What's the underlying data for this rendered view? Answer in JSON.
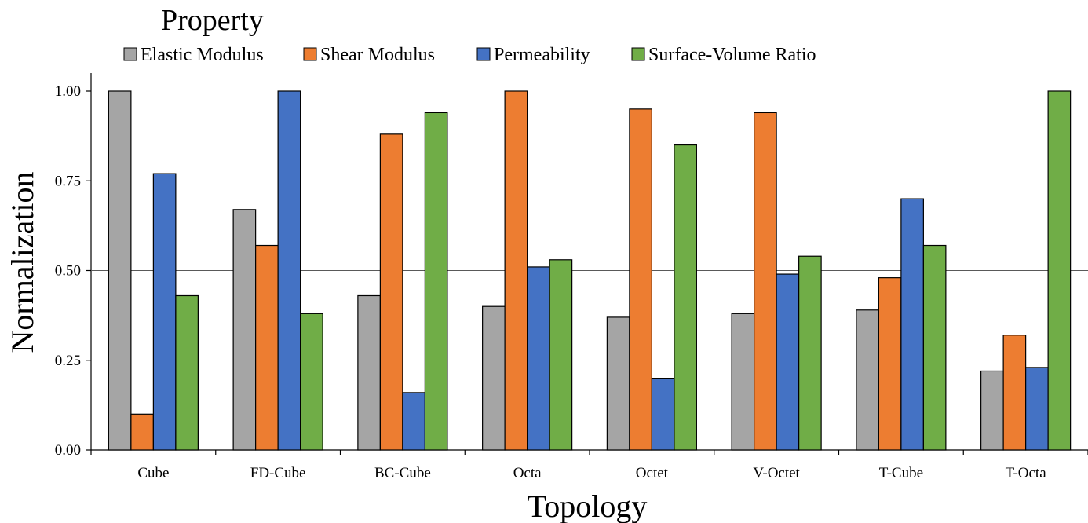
{
  "chart_data": {
    "type": "bar",
    "title": "",
    "legend_title": "Property",
    "legend_position": "top",
    "xlabel": "Topology",
    "ylabel": "Normalization",
    "ylim": [
      0,
      1
    ],
    "yticks": [
      "0.00",
      "0.25",
      "0.50",
      "0.75",
      "1.00"
    ],
    "reference_line": 0.5,
    "grid": false,
    "categories": [
      "Cube",
      "FD-Cube",
      "BC-Cube",
      "Octa",
      "Octet",
      "V-Octet",
      "T-Cube",
      "T-Octa"
    ],
    "series": [
      {
        "name": "Elastic Modulus",
        "color": "#a5a5a5",
        "values": [
          1.0,
          0.67,
          0.43,
          0.4,
          0.37,
          0.38,
          0.39,
          0.22
        ]
      },
      {
        "name": "Shear Modulus",
        "color": "#ed7d31",
        "values": [
          0.1,
          0.57,
          0.88,
          1.0,
          0.95,
          0.94,
          0.48,
          0.32
        ]
      },
      {
        "name": "Permeability",
        "color": "#4472c4",
        "values": [
          0.77,
          1.0,
          0.16,
          0.51,
          0.2,
          0.49,
          0.7,
          0.23
        ]
      },
      {
        "name": "Surface-Volume Ratio",
        "color": "#70ad47",
        "values": [
          0.43,
          0.38,
          0.94,
          0.53,
          0.85,
          0.54,
          0.57,
          1.0
        ]
      }
    ]
  }
}
